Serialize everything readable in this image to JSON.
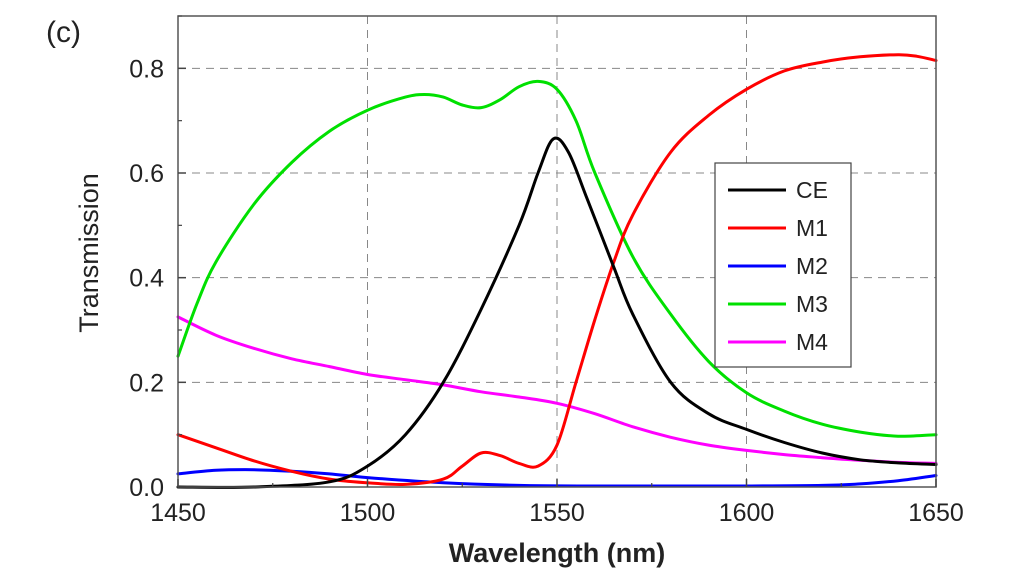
{
  "panel_label": "(c)",
  "chart_data": {
    "type": "line",
    "xlabel": "Wavelength (nm)",
    "ylabel": "Transmission",
    "xlim": [
      1450,
      1650
    ],
    "ylim": [
      0,
      0.9
    ],
    "xticks": [
      1450,
      1500,
      1550,
      1600,
      1650
    ],
    "yticks": [
      0.0,
      0.2,
      0.4,
      0.6,
      0.8
    ],
    "ytick_labels": [
      "0.0",
      "0.2",
      "0.4",
      "0.6",
      "0.8"
    ],
    "grid": true,
    "legend_position": "right",
    "series": [
      {
        "name": "CE",
        "color": "#000000",
        "x": [
          1450,
          1470,
          1490,
          1500,
          1510,
          1520,
          1530,
          1540,
          1545,
          1549,
          1553,
          1558,
          1565,
          1570,
          1580,
          1590,
          1600,
          1610,
          1620,
          1630,
          1640,
          1650
        ],
        "y": [
          0.0,
          0.0,
          0.01,
          0.04,
          0.1,
          0.2,
          0.34,
          0.5,
          0.6,
          0.665,
          0.64,
          0.55,
          0.42,
          0.33,
          0.2,
          0.14,
          0.11,
          0.085,
          0.065,
          0.052,
          0.046,
          0.043
        ]
      },
      {
        "name": "M1",
        "color": "#ff0000",
        "x": [
          1450,
          1460,
          1470,
          1480,
          1490,
          1500,
          1510,
          1520,
          1525,
          1530,
          1535,
          1540,
          1545,
          1550,
          1555,
          1560,
          1565,
          1570,
          1580,
          1590,
          1600,
          1610,
          1620,
          1630,
          1640,
          1645,
          1650
        ],
        "y": [
          0.1,
          0.075,
          0.05,
          0.03,
          0.015,
          0.008,
          0.005,
          0.015,
          0.04,
          0.065,
          0.06,
          0.045,
          0.04,
          0.08,
          0.2,
          0.32,
          0.43,
          0.52,
          0.64,
          0.71,
          0.76,
          0.795,
          0.812,
          0.822,
          0.826,
          0.823,
          0.815
        ]
      },
      {
        "name": "M2",
        "color": "#0000ff",
        "x": [
          1450,
          1460,
          1470,
          1480,
          1490,
          1500,
          1520,
          1540,
          1560,
          1580,
          1600,
          1620,
          1630,
          1640,
          1650
        ],
        "y": [
          0.025,
          0.032,
          0.033,
          0.03,
          0.025,
          0.018,
          0.008,
          0.003,
          0.002,
          0.002,
          0.002,
          0.003,
          0.006,
          0.012,
          0.022
        ]
      },
      {
        "name": "M3",
        "color": "#00e000",
        "x": [
          1450,
          1455,
          1460,
          1470,
          1480,
          1490,
          1500,
          1510,
          1515,
          1520,
          1525,
          1530,
          1535,
          1540,
          1545,
          1550,
          1555,
          1560,
          1570,
          1580,
          1590,
          1600,
          1610,
          1620,
          1630,
          1640,
          1650
        ],
        "y": [
          0.25,
          0.35,
          0.43,
          0.54,
          0.62,
          0.68,
          0.72,
          0.745,
          0.75,
          0.745,
          0.73,
          0.725,
          0.74,
          0.765,
          0.775,
          0.76,
          0.7,
          0.6,
          0.44,
          0.33,
          0.24,
          0.18,
          0.145,
          0.12,
          0.105,
          0.097,
          0.1
        ]
      },
      {
        "name": "M4",
        "color": "#ff00ff",
        "x": [
          1450,
          1460,
          1470,
          1480,
          1490,
          1500,
          1510,
          1520,
          1530,
          1540,
          1550,
          1560,
          1570,
          1580,
          1590,
          1600,
          1610,
          1620,
          1630,
          1640,
          1650
        ],
        "y": [
          0.325,
          0.29,
          0.265,
          0.245,
          0.23,
          0.215,
          0.205,
          0.195,
          0.182,
          0.172,
          0.16,
          0.14,
          0.115,
          0.095,
          0.08,
          0.07,
          0.062,
          0.056,
          0.051,
          0.047,
          0.045
        ]
      }
    ]
  }
}
